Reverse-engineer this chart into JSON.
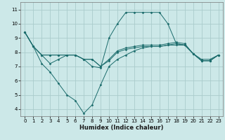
{
  "xlabel": "Humidex (Indice chaleur)",
  "bg_color": "#cce8e8",
  "grid_color": "#aacccc",
  "line_color": "#1a6b6b",
  "xlim": [
    -0.5,
    23.5
  ],
  "ylim": [
    3.5,
    11.5
  ],
  "xticks": [
    0,
    1,
    2,
    3,
    4,
    5,
    6,
    7,
    8,
    9,
    10,
    11,
    12,
    13,
    14,
    15,
    16,
    17,
    18,
    19,
    20,
    21,
    22,
    23
  ],
  "yticks": [
    4,
    5,
    6,
    7,
    8,
    9,
    10,
    11
  ],
  "series": [
    {
      "x": [
        0,
        1,
        2,
        3,
        4,
        5,
        6,
        7,
        8,
        9,
        10,
        11,
        12,
        13,
        14,
        15,
        16,
        17,
        18,
        19,
        20,
        21,
        22,
        23
      ],
      "y": [
        9.4,
        8.4,
        7.2,
        6.6,
        5.8,
        5.0,
        4.6,
        3.7,
        4.3,
        5.7,
        7.0,
        7.5,
        7.8,
        8.1,
        8.3,
        8.4,
        8.4,
        8.5,
        8.6,
        8.5,
        7.9,
        7.4,
        7.4,
        7.8
      ]
    },
    {
      "x": [
        0,
        1,
        2,
        3,
        4,
        5,
        6,
        7,
        8,
        9,
        10,
        11,
        12,
        13,
        14,
        15,
        16,
        17,
        18,
        19,
        20,
        21,
        22,
        23
      ],
      "y": [
        9.4,
        8.4,
        7.8,
        7.8,
        7.8,
        7.8,
        7.8,
        7.5,
        7.5,
        7.0,
        7.5,
        8.1,
        8.3,
        8.4,
        8.5,
        8.5,
        8.5,
        8.6,
        8.7,
        8.6,
        7.9,
        7.5,
        7.5,
        7.8
      ]
    },
    {
      "x": [
        0,
        1,
        2,
        3,
        4,
        5,
        6,
        7,
        8,
        9,
        10,
        11,
        12,
        13,
        14,
        15,
        16,
        17,
        18,
        19,
        20,
        21,
        22,
        23
      ],
      "y": [
        9.4,
        8.4,
        7.8,
        7.8,
        7.8,
        7.8,
        7.8,
        7.5,
        7.0,
        6.9,
        9.0,
        10.0,
        10.8,
        10.8,
        10.8,
        10.8,
        10.8,
        10.0,
        8.6,
        8.5,
        7.9,
        7.4,
        7.4,
        7.8
      ]
    },
    {
      "x": [
        0,
        1,
        2,
        3,
        4,
        5,
        6,
        7,
        8,
        9,
        10,
        11,
        12,
        13,
        14,
        15,
        16,
        17,
        18,
        19,
        20,
        21,
        22,
        23
      ],
      "y": [
        9.4,
        8.4,
        7.8,
        7.2,
        7.5,
        7.8,
        7.8,
        7.5,
        7.5,
        7.0,
        7.4,
        8.0,
        8.2,
        8.3,
        8.4,
        8.4,
        8.4,
        8.5,
        8.5,
        8.5,
        7.9,
        7.4,
        7.4,
        7.8
      ]
    }
  ]
}
